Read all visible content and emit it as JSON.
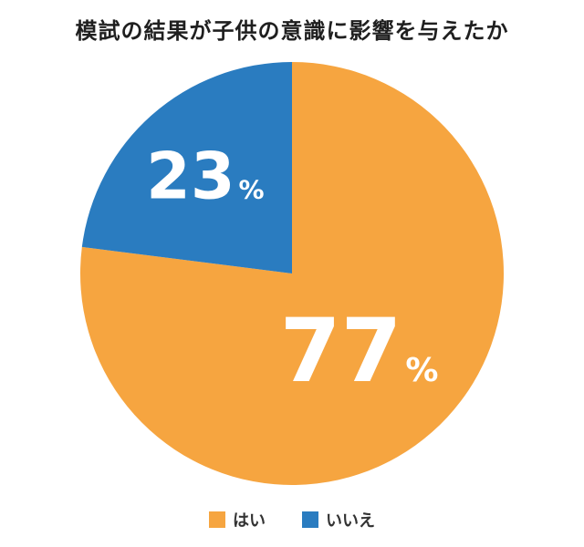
{
  "chart_data": {
    "type": "pie",
    "title": "模試の結果が子供の意識に影響を与えたか",
    "categories": [
      "はい",
      "いいえ"
    ],
    "values": [
      77,
      23
    ],
    "unit": "%",
    "colors": [
      "#F6A540",
      "#2A7CC0"
    ],
    "labels": [
      {
        "value": "77",
        "unit": "%"
      },
      {
        "value": "23",
        "unit": "%"
      }
    ],
    "legend": "bottom"
  }
}
